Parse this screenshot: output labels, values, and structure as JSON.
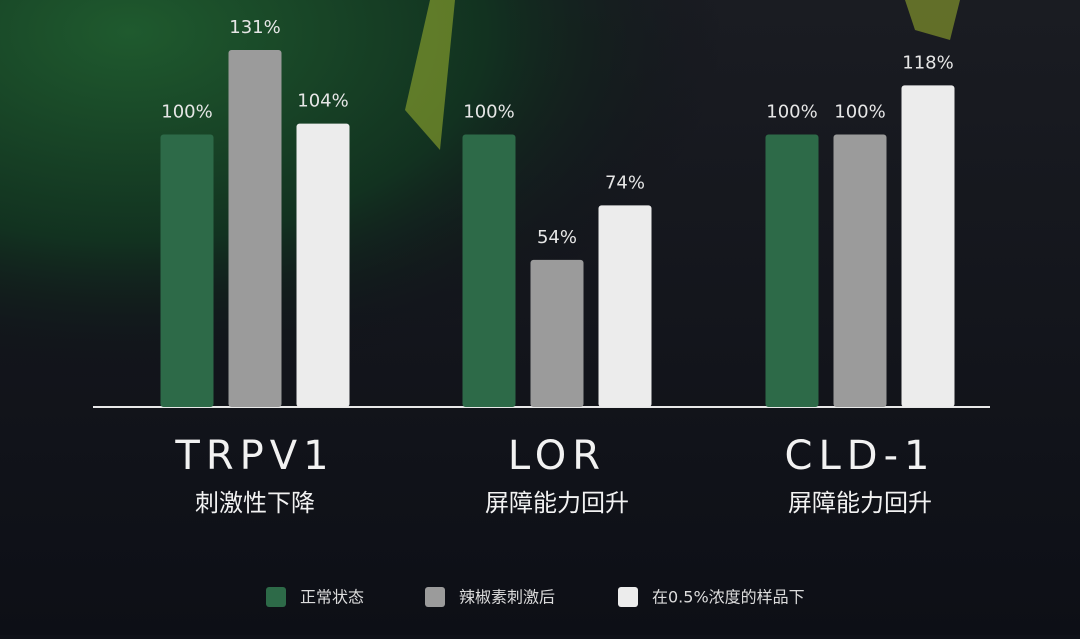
{
  "chart_data": {
    "type": "bar",
    "categories": [
      "TRPV1",
      "LOR",
      "CLD-1"
    ],
    "category_descriptions": [
      "刺激性下降",
      "屏障能力回升",
      "屏障能力回升"
    ],
    "series": [
      {
        "name": "正常状态",
        "color": "#2d6a48",
        "values": [
          100,
          100,
          100
        ],
        "value_labels": [
          "100%",
          "100%",
          "100%"
        ]
      },
      {
        "name": "辣椒素刺激后",
        "color": "#9b9b9b",
        "values": [
          131,
          54,
          100
        ],
        "value_labels": [
          "131%",
          "54%",
          "100%"
        ]
      },
      {
        "name": "在0.5%浓度的样品下",
        "color": "#ececec",
        "values": [
          104,
          74,
          118
        ],
        "value_labels": [
          "104%",
          "74%",
          "118%"
        ]
      }
    ]
  }
}
